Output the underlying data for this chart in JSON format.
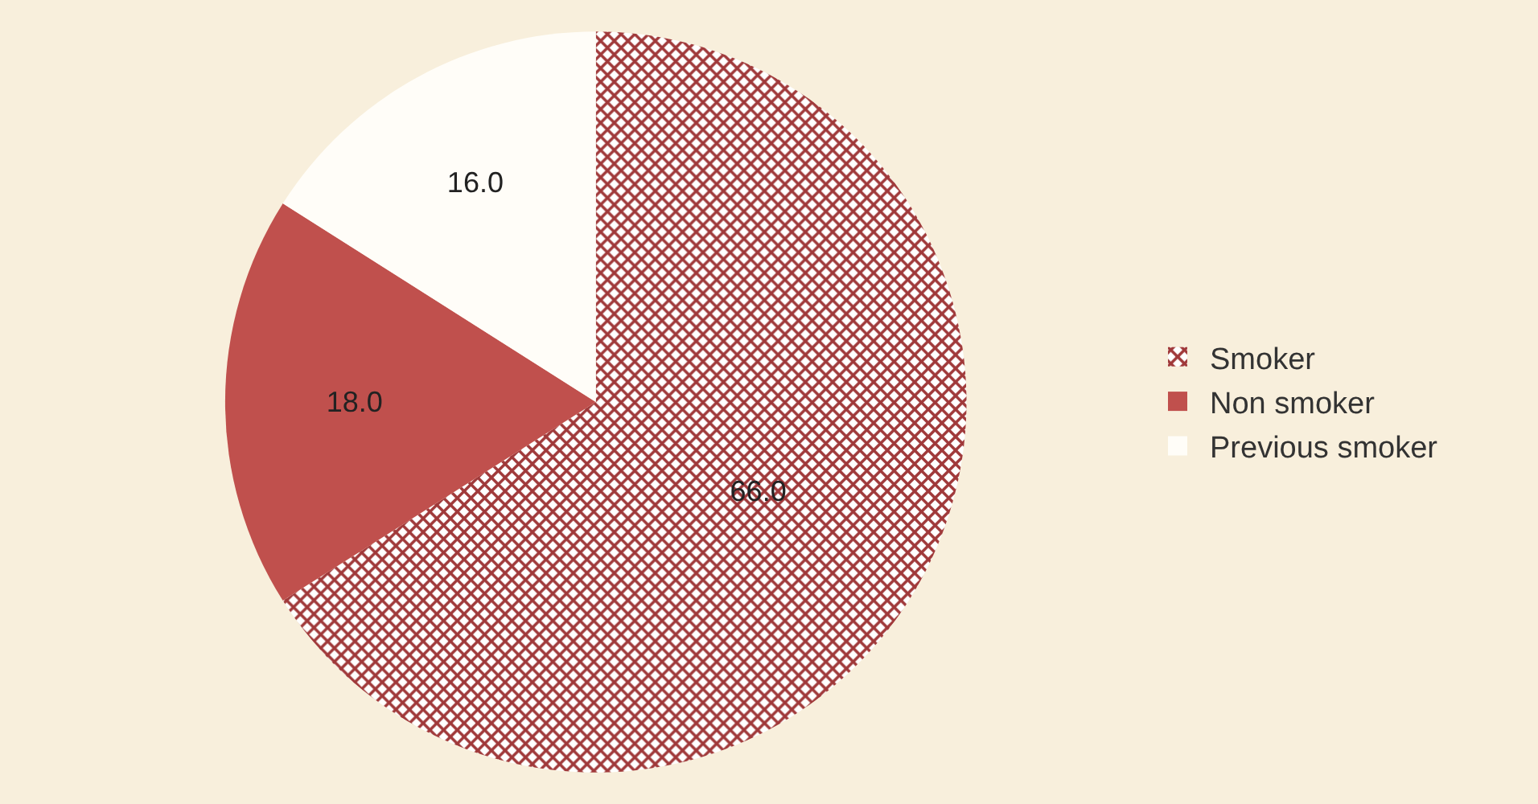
{
  "chart_data": {
    "type": "pie",
    "categories": [
      "Smoker",
      "Non smoker",
      "Previous smoker"
    ],
    "values": [
      66,
      18,
      16
    ],
    "colors": [
      "#a0393a",
      "#c0504d",
      "#fffdf8"
    ],
    "value_labels": [
      "66.0",
      "18.0",
      "16.0"
    ],
    "legend": "right"
  }
}
